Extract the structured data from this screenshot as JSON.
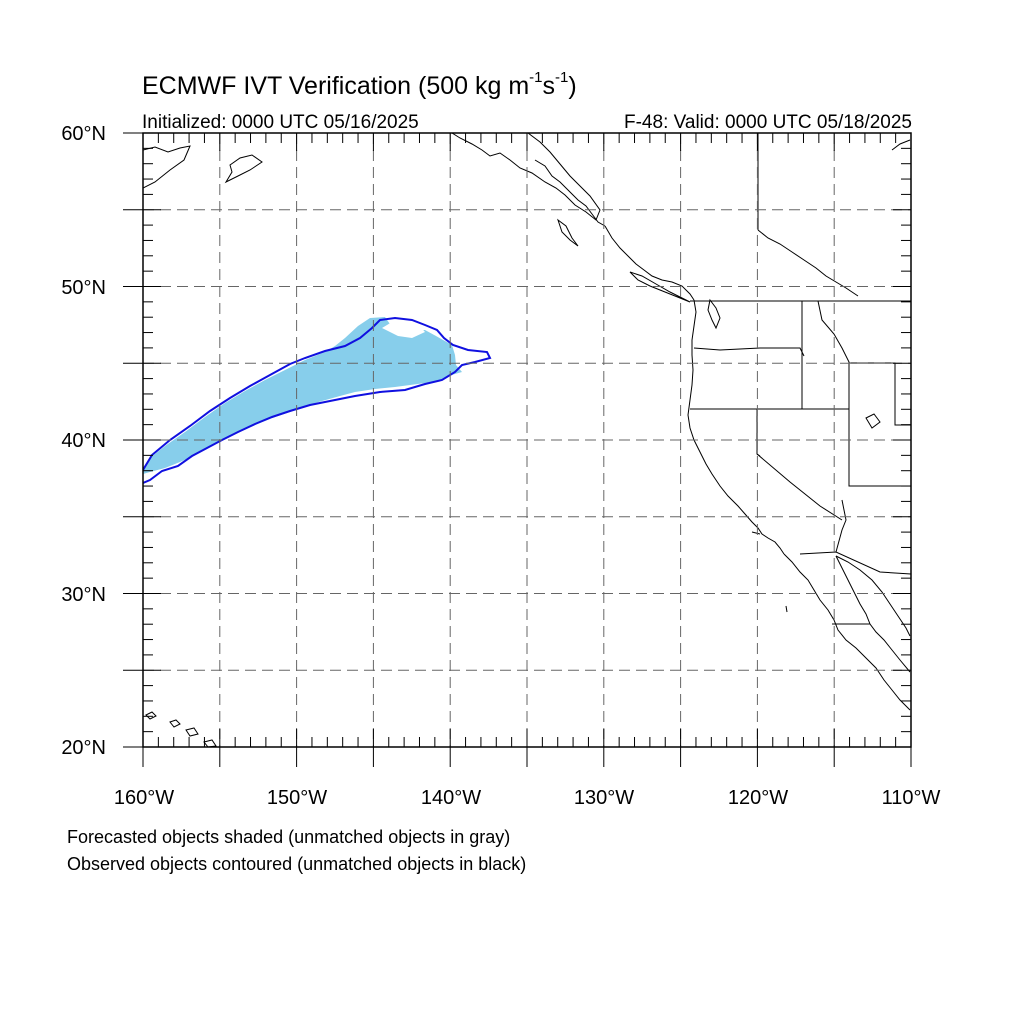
{
  "title": {
    "main": "ECMWF IVT Verification (500 kg m",
    "sup1": "-1",
    "mid": "s",
    "sup2": "-1",
    "end": ")"
  },
  "initialized": "Initialized: 0000 UTC 05/16/2025",
  "valid": "F-48: Valid: 0000 UTC 05/18/2025",
  "lat_labels": [
    "60°N",
    "50°N",
    "40°N",
    "30°N",
    "20°N"
  ],
  "lon_labels": [
    "160°W",
    "150°W",
    "140°W",
    "130°W",
    "120°W",
    "110°W"
  ],
  "notes": [
    "Forecasted objects shaded (unmatched objects in gray)",
    "Observed objects contoured (unmatched objects in black)"
  ],
  "map": {
    "extent": {
      "lon_min": -160,
      "lon_max": -110,
      "lat_min": 20,
      "lat_max": 60
    },
    "grid_lon_step": 5,
    "grid_lat_step": 5,
    "forecast_fill_color": "#87ceeb",
    "observed_contour_color": "#1010e0",
    "coastline_color": "#000000"
  }
}
